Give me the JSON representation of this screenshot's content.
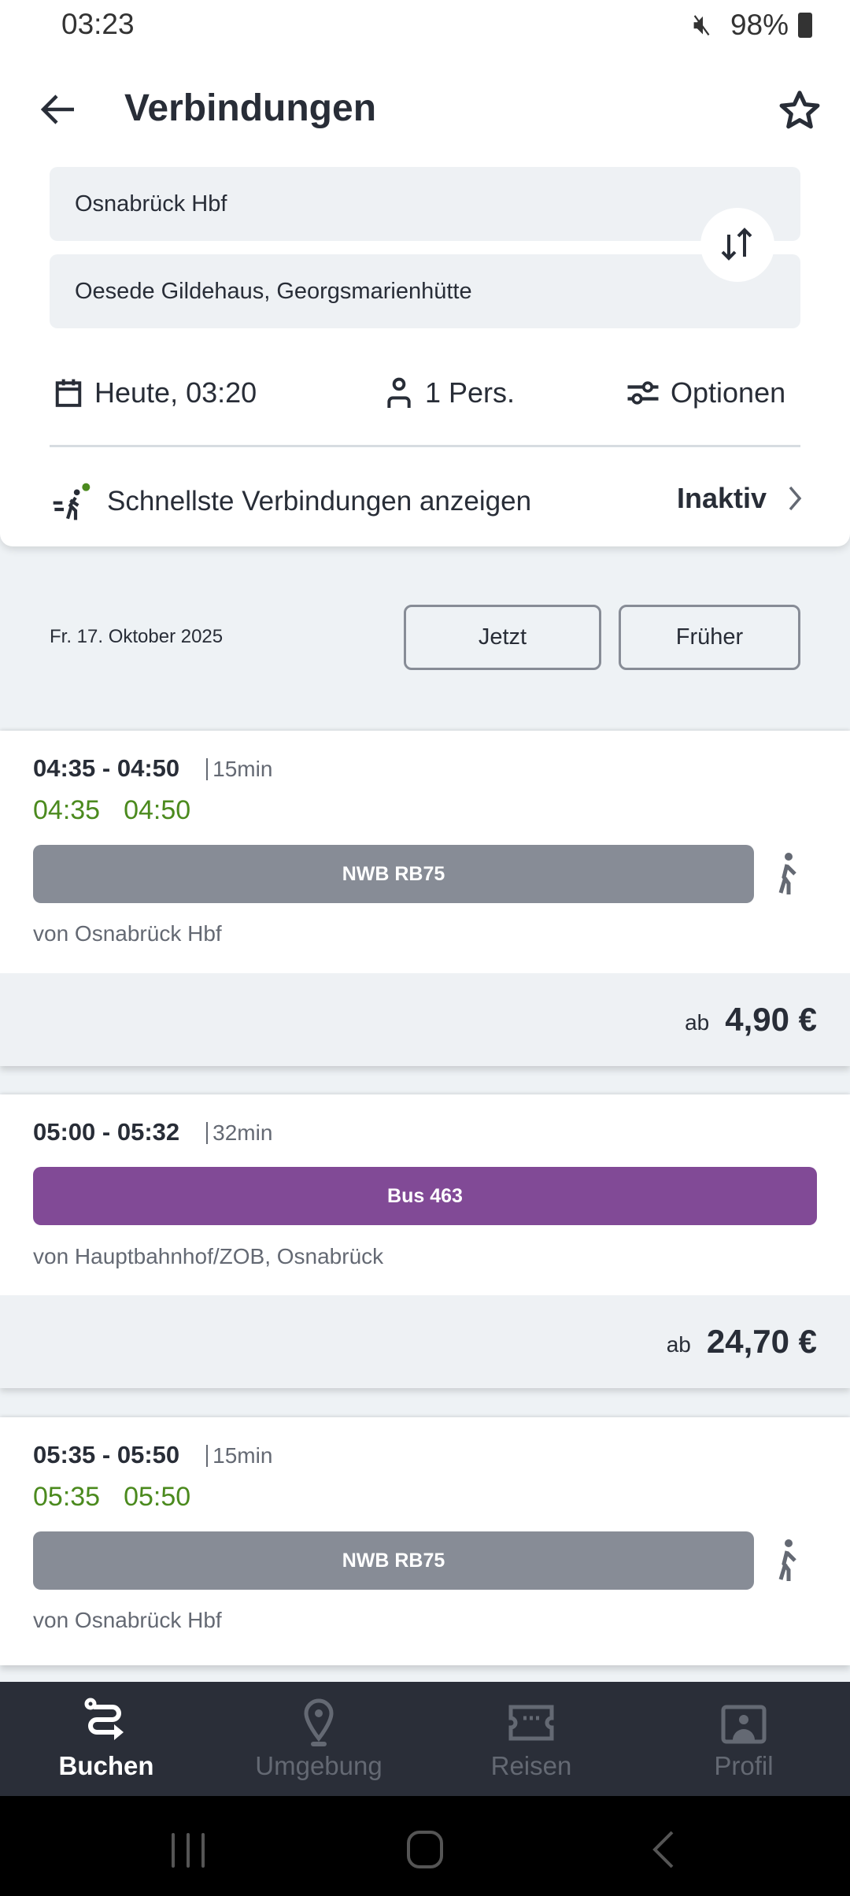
{
  "status_bar": {
    "time": "03:23",
    "battery": "98%"
  },
  "header": {
    "title": "Verbindungen"
  },
  "search": {
    "from": "Osnabrück Hbf",
    "to": "Oesede Gildehaus, Georgsmarienhütte",
    "date_time": "Heute, 03:20",
    "persons": "1 Pers.",
    "options": "Optionen",
    "fastest_label": "Schnellste Verbindungen anzeigen",
    "fastest_state": "Inaktiv"
  },
  "results_header": {
    "date": "Fr. 17. Oktober 2025",
    "now_button": "Jetzt",
    "earlier_button": "Früher"
  },
  "connections": [
    {
      "time": "04:35 - 04:50",
      "duration": "15min",
      "realtime_dep": "04:35",
      "realtime_arr": "04:50",
      "line": "NWB RB75",
      "line_color": "#878c96",
      "from": "von Osnabrück Hbf",
      "price_prefix": "ab",
      "price": "4,90 €"
    },
    {
      "time": "05:00 - 05:32",
      "duration": "32min",
      "line": "Bus 463",
      "line_color": "#814a96",
      "from": "von Hauptbahnhof/ZOB, Osnabrück",
      "price_prefix": "ab",
      "price": "24,70 €"
    },
    {
      "time": "05:35 - 05:50",
      "duration": "15min",
      "realtime_dep": "05:35",
      "realtime_arr": "05:50",
      "line": "NWB RB75",
      "line_color": "#878c96",
      "from": "von Osnabrück Hbf"
    }
  ],
  "colors": {
    "realtime_green": "#4b8a1e",
    "nav_bg": "#2a2e38"
  },
  "bottom_nav": [
    {
      "label": "Buchen",
      "active": true
    },
    {
      "label": "Umgebung"
    },
    {
      "label": "Reisen"
    },
    {
      "label": "Profil"
    }
  ]
}
